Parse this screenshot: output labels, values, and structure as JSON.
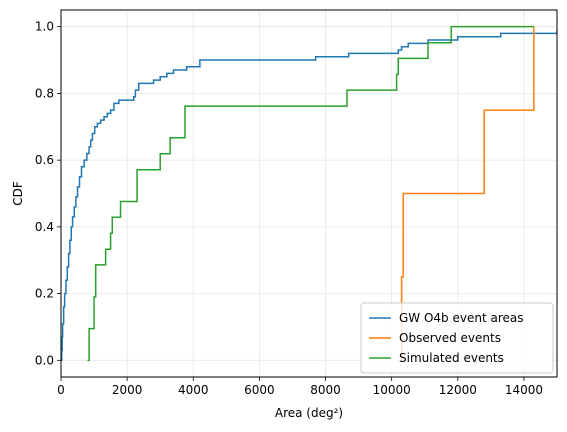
{
  "chart_data": {
    "type": "line",
    "step": true,
    "xlabel": "Area (deg²)",
    "ylabel": "CDF",
    "xlim": [
      0,
      15000
    ],
    "ylim": [
      -0.05,
      1.05
    ],
    "xticks": [
      0,
      2000,
      4000,
      6000,
      8000,
      10000,
      12000,
      14000
    ],
    "yticks": [
      0.0,
      0.2,
      0.4,
      0.6,
      0.8,
      1.0
    ],
    "grid": true,
    "legend_position": "lower-right",
    "series": [
      {
        "name": "GW O4b event areas",
        "color": "#1f77b4",
        "points": [
          [
            0,
            0
          ],
          [
            20,
            0.03
          ],
          [
            35,
            0.07
          ],
          [
            50,
            0.11
          ],
          [
            80,
            0.16
          ],
          [
            110,
            0.2
          ],
          [
            150,
            0.24
          ],
          [
            190,
            0.28
          ],
          [
            230,
            0.32
          ],
          [
            270,
            0.36
          ],
          [
            310,
            0.4
          ],
          [
            350,
            0.43
          ],
          [
            400,
            0.46
          ],
          [
            450,
            0.49
          ],
          [
            500,
            0.52
          ],
          [
            560,
            0.55
          ],
          [
            620,
            0.58
          ],
          [
            700,
            0.6
          ],
          [
            780,
            0.62
          ],
          [
            850,
            0.64
          ],
          [
            900,
            0.66
          ],
          [
            950,
            0.68
          ],
          [
            1020,
            0.7
          ],
          [
            1100,
            0.71
          ],
          [
            1200,
            0.72
          ],
          [
            1300,
            0.73
          ],
          [
            1400,
            0.74
          ],
          [
            1500,
            0.75
          ],
          [
            1600,
            0.77
          ],
          [
            1750,
            0.78
          ],
          [
            2200,
            0.79
          ],
          [
            2250,
            0.81
          ],
          [
            2350,
            0.83
          ],
          [
            2800,
            0.84
          ],
          [
            3000,
            0.85
          ],
          [
            3200,
            0.86
          ],
          [
            3400,
            0.87
          ],
          [
            3800,
            0.88
          ],
          [
            4200,
            0.9
          ],
          [
            7700,
            0.91
          ],
          [
            8700,
            0.92
          ],
          [
            10200,
            0.93
          ],
          [
            10300,
            0.94
          ],
          [
            10500,
            0.95
          ],
          [
            11100,
            0.96
          ],
          [
            12000,
            0.97
          ],
          [
            13300,
            0.98
          ],
          [
            15000,
            0.99
          ]
        ]
      },
      {
        "name": "Observed events",
        "color": "#ff7f0e",
        "points": [
          [
            10300,
            0
          ],
          [
            10300,
            0.25
          ],
          [
            10350,
            0.5
          ],
          [
            12800,
            0.75
          ],
          [
            14300,
            1.0
          ]
        ]
      },
      {
        "name": "Simulated events",
        "color": "#2ca02c",
        "points": [
          [
            800,
            0
          ],
          [
            850,
            0.095
          ],
          [
            1000,
            0.19
          ],
          [
            1050,
            0.286
          ],
          [
            1350,
            0.333
          ],
          [
            1500,
            0.381
          ],
          [
            1550,
            0.429
          ],
          [
            1800,
            0.476
          ],
          [
            2300,
            0.571
          ],
          [
            3000,
            0.619
          ],
          [
            3300,
            0.667
          ],
          [
            3750,
            0.762
          ],
          [
            8650,
            0.81
          ],
          [
            10150,
            0.857
          ],
          [
            10200,
            0.905
          ],
          [
            11100,
            0.952
          ],
          [
            11800,
            1.0
          ],
          [
            14300,
            1.0
          ]
        ]
      }
    ]
  }
}
